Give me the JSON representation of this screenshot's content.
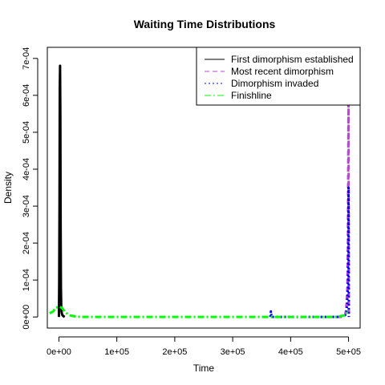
{
  "chart_data": {
    "type": "line",
    "title": "Waiting Time Distributions",
    "xlabel": "Time",
    "ylabel": "Density",
    "xlim": [
      -20000,
      520000
    ],
    "ylim": [
      -3e-05,
      0.00073
    ],
    "x_ticks": [
      0,
      100000,
      200000,
      300000,
      400000,
      500000
    ],
    "x_tick_labels": [
      "0e+00",
      "1e+05",
      "2e+05",
      "3e+05",
      "4e+05",
      "5e+05"
    ],
    "y_ticks": [
      0,
      0.0001,
      0.0002,
      0.0003,
      0.0004,
      0.0005,
      0.0006,
      0.0007
    ],
    "y_tick_labels": [
      "0e+00",
      "1e-04",
      "2e-04",
      "3e-04",
      "4e-04",
      "5e-04",
      "6e-04",
      "7e-04"
    ],
    "grid": false,
    "legend_position": "top-right",
    "series": [
      {
        "name": "First dimorphism established",
        "color": "#000000",
        "dash": "solid",
        "x": [
          0,
          500,
          1000,
          1500,
          2000,
          2500,
          3000,
          3500,
          4000,
          4500,
          5000,
          6000,
          8000,
          10000
        ],
        "y": [
          0,
          0.0001,
          0.0003,
          0.00062,
          0.00068,
          0.00055,
          0.00025,
          8e-05,
          3e-05,
          1.5e-05,
          1e-05,
          5e-06,
          2e-06,
          0
        ]
      },
      {
        "name": "Most recent dimorphism",
        "color": "#c040e0",
        "dash": "dashed",
        "x": [
          480000,
          490000,
          494000,
          496000,
          498000,
          499000,
          500000,
          500500
        ],
        "y": [
          0,
          0,
          5e-06,
          2e-05,
          8e-05,
          0.0002,
          0.00062,
          0
        ]
      },
      {
        "name": "Dimorphism invaded",
        "color": "#0000ff",
        "dash": "dotted",
        "x": [
          365000,
          366000,
          367000,
          370000,
          400000,
          480000,
          494000,
          497000,
          499000,
          500000,
          500500
        ],
        "y": [
          0,
          1.5e-05,
          0,
          0,
          0,
          0,
          5e-06,
          2e-05,
          8e-05,
          0.00035,
          0
        ]
      },
      {
        "name": "Finishline",
        "color": "#00ff00",
        "dash": "dotdash",
        "x": [
          -16000,
          -10000,
          -5000,
          0,
          5000,
          10000,
          15000,
          20000,
          30000,
          40000,
          100000,
          300000,
          480000,
          495000,
          500000
        ],
        "y": [
          1e-05,
          1.5e-05,
          2.5e-05,
          2.8e-05,
          2.5e-05,
          1.5e-05,
          8e-06,
          4e-06,
          1e-06,
          0,
          0,
          0,
          0,
          5e-06,
          2e-05
        ]
      }
    ]
  }
}
